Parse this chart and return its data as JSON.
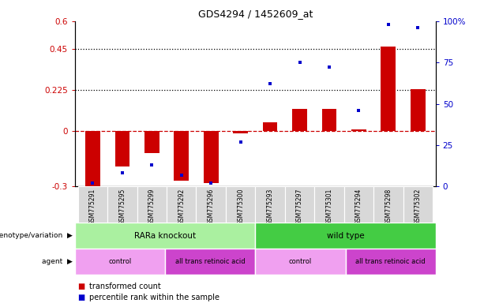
{
  "title": "GDS4294 / 1452609_at",
  "samples": [
    "GSM775291",
    "GSM775295",
    "GSM775299",
    "GSM775292",
    "GSM775296",
    "GSM775300",
    "GSM775293",
    "GSM775297",
    "GSM775301",
    "GSM775294",
    "GSM775298",
    "GSM775302"
  ],
  "red_bars": [
    -0.3,
    -0.19,
    -0.12,
    -0.27,
    -0.28,
    -0.01,
    0.05,
    0.12,
    0.12,
    0.01,
    0.46,
    0.23
  ],
  "blue_dots_pct": [
    2,
    8,
    13,
    7,
    2,
    27,
    62,
    75,
    72,
    46,
    98,
    96
  ],
  "ylim_left": [
    -0.3,
    0.6
  ],
  "ylim_right": [
    0,
    100
  ],
  "yticks_left": [
    -0.3,
    0,
    0.225,
    0.45,
    0.6
  ],
  "yticks_left_labels": [
    "-0.3",
    "0",
    "0.225",
    "0.45",
    "0.6"
  ],
  "yticks_right": [
    0,
    25,
    50,
    75,
    100
  ],
  "yticks_right_labels": [
    "0",
    "25",
    "50",
    "75",
    "100%"
  ],
  "hlines": [
    0.225,
    0.45
  ],
  "genotype_groups": [
    {
      "label": "RARa knockout",
      "start": 0,
      "end": 5,
      "color": "#aaf0a0"
    },
    {
      "label": "wild type",
      "start": 6,
      "end": 11,
      "color": "#44cc44"
    }
  ],
  "agent_groups": [
    {
      "label": "control",
      "start": 0,
      "end": 2,
      "color": "#f0a0f0"
    },
    {
      "label": "all trans retinoic acid",
      "start": 3,
      "end": 5,
      "color": "#cc44cc"
    },
    {
      "label": "control",
      "start": 6,
      "end": 8,
      "color": "#f0a0f0"
    },
    {
      "label": "all trans retinoic acid",
      "start": 9,
      "end": 11,
      "color": "#cc44cc"
    }
  ],
  "bar_color": "#cc0000",
  "dot_color": "#0000cc",
  "dashed_line_color": "#cc0000",
  "legend_items": [
    {
      "label": "transformed count",
      "color": "#cc0000"
    },
    {
      "label": "percentile rank within the sample",
      "color": "#0000cc"
    }
  ],
  "row_label_genotype": "genotype/variation",
  "row_label_agent": "agent",
  "tick_bg_color": "#d8d8d8",
  "background_color": "#ffffff"
}
